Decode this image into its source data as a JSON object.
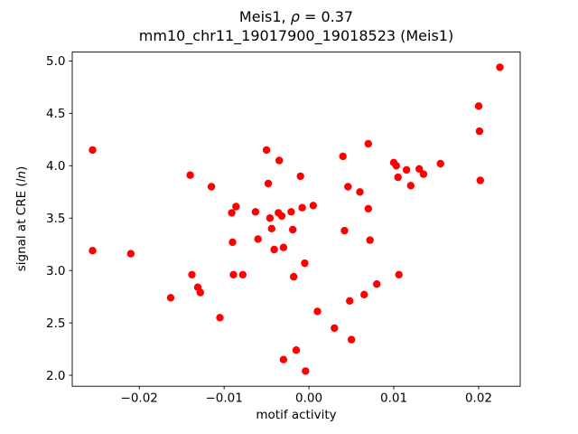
{
  "title": {
    "line1_prefix": "Meis1, ",
    "line1_rho": "ρ",
    "line1_suffix": " = 0.37",
    "line2": "mm10_chr11_19017900_19018523 (Meis1)"
  },
  "chart_data": {
    "type": "scatter",
    "title": "Meis1, ρ = 0.37",
    "subtitle": "mm10_chr11_19017900_19018523 (Meis1)",
    "xlabel": "motif activity",
    "ylabel": "signal at CRE (ln)",
    "ylabel_prefix": "signal at CRE (",
    "ylabel_italic": "ln",
    "ylabel_suffix": ")",
    "marker_color": "#ff0000",
    "grid": false,
    "legend": "none",
    "xlim": [
      -0.0279,
      0.0249
    ],
    "ylim": [
      1.895,
      5.085
    ],
    "xticks": [
      -0.02,
      -0.01,
      0.0,
      0.01,
      0.02
    ],
    "xtick_labels": [
      "−0.02",
      "−0.01",
      "0.00",
      "0.01",
      "0.02"
    ],
    "yticks": [
      2.0,
      2.5,
      3.0,
      3.5,
      4.0,
      4.5,
      5.0
    ],
    "ytick_labels": [
      "2.0",
      "2.5",
      "3.0",
      "3.5",
      "4.0",
      "4.5",
      "5.0"
    ],
    "points": [
      [
        -0.0255,
        4.15
      ],
      [
        -0.0255,
        3.19
      ],
      [
        -0.021,
        3.16
      ],
      [
        -0.0163,
        2.74
      ],
      [
        -0.014,
        3.91
      ],
      [
        -0.0138,
        2.96
      ],
      [
        -0.0131,
        2.84
      ],
      [
        -0.0128,
        2.79
      ],
      [
        -0.0115,
        3.8
      ],
      [
        -0.0105,
        2.55
      ],
      [
        -0.0091,
        3.55
      ],
      [
        -0.0086,
        3.61
      ],
      [
        -0.009,
        3.27
      ],
      [
        -0.0089,
        2.96
      ],
      [
        -0.0078,
        2.96
      ],
      [
        -0.0063,
        3.56
      ],
      [
        -0.006,
        3.3
      ],
      [
        -0.005,
        4.15
      ],
      [
        -0.0048,
        3.83
      ],
      [
        -0.0046,
        3.5
      ],
      [
        -0.0044,
        3.4
      ],
      [
        -0.0041,
        3.2
      ],
      [
        -0.0035,
        4.05
      ],
      [
        -0.0036,
        3.55
      ],
      [
        -0.0032,
        3.52
      ],
      [
        -0.003,
        3.22
      ],
      [
        -0.003,
        2.15
      ],
      [
        -0.0021,
        3.56
      ],
      [
        -0.0019,
        3.39
      ],
      [
        -0.0018,
        2.94
      ],
      [
        -0.0015,
        2.24
      ],
      [
        -0.001,
        3.9
      ],
      [
        -0.0008,
        3.6
      ],
      [
        -0.0005,
        3.07
      ],
      [
        -0.0004,
        2.04
      ],
      [
        0.0005,
        3.62
      ],
      [
        0.001,
        2.61
      ],
      [
        0.003,
        2.45
      ],
      [
        0.004,
        4.09
      ],
      [
        0.0042,
        3.38
      ],
      [
        0.0046,
        3.8
      ],
      [
        0.0048,
        2.71
      ],
      [
        0.005,
        2.34
      ],
      [
        0.006,
        3.75
      ],
      [
        0.0065,
        2.77
      ],
      [
        0.007,
        4.21
      ],
      [
        0.007,
        3.59
      ],
      [
        0.0072,
        3.29
      ],
      [
        0.008,
        2.87
      ],
      [
        0.01,
        4.03
      ],
      [
        0.0103,
        4.0
      ],
      [
        0.0105,
        3.89
      ],
      [
        0.0106,
        2.96
      ],
      [
        0.0115,
        3.96
      ],
      [
        0.012,
        3.81
      ],
      [
        0.013,
        3.97
      ],
      [
        0.0135,
        3.92
      ],
      [
        0.0155,
        4.02
      ],
      [
        0.02,
        4.57
      ],
      [
        0.0201,
        4.33
      ],
      [
        0.0202,
        3.86
      ],
      [
        0.0225,
        4.94
      ]
    ]
  }
}
